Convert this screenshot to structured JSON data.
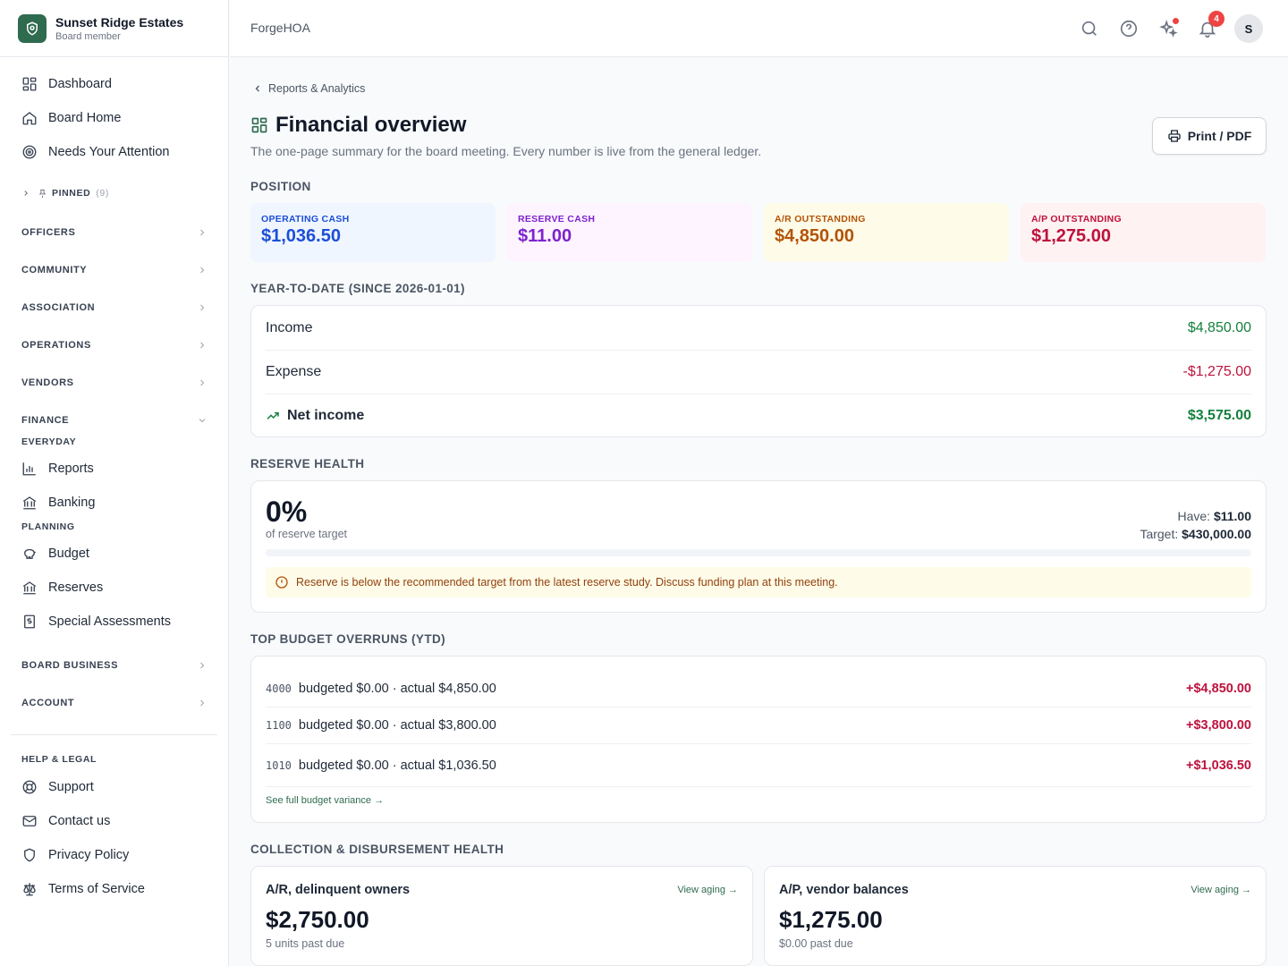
{
  "org": {
    "name": "Sunset Ridge Estates",
    "role": "Board member"
  },
  "nav": {
    "top": [
      {
        "label": "Dashboard",
        "icon": "dashboard-icon"
      },
      {
        "label": "Board Home",
        "icon": "home-icon"
      },
      {
        "label": "Needs Your Attention",
        "icon": "target-icon"
      }
    ],
    "pinned": {
      "label": "PINNED",
      "count": "(9)"
    },
    "sections": {
      "officers": "OFFICERS",
      "community": "COMMUNITY",
      "association": "ASSOCIATION",
      "operations": "OPERATIONS",
      "vendors": "VENDORS",
      "finance": "FINANCE",
      "board_business": "BOARD BUSINESS",
      "account": "ACCOUNT",
      "help_legal": "HELP & LEGAL"
    },
    "finance_groups": {
      "everyday": "EVERYDAY",
      "planning": "PLANNING"
    },
    "finance_items": {
      "reports": "Reports",
      "banking": "Banking",
      "budget": "Budget",
      "reserves": "Reserves",
      "special_assessments": "Special Assessments"
    },
    "help_items": {
      "support": "Support",
      "contact": "Contact us",
      "privacy": "Privacy Policy",
      "terms": "Terms of Service"
    }
  },
  "header": {
    "brand": "ForgeHOA",
    "notifications_count": "4",
    "avatar_initial": "S"
  },
  "page": {
    "breadcrumb": "Reports & Analytics",
    "title": "Financial overview",
    "subtitle": "The one-page summary for the board meeting. Every number is live from the general ledger.",
    "print_label": "Print / PDF"
  },
  "position": {
    "heading": "POSITION",
    "cards": [
      {
        "label": "OPERATING CASH",
        "value": "$1,036.50",
        "bg": "#eff6ff",
        "fg": "#1d4ed8"
      },
      {
        "label": "RESERVE CASH",
        "value": "$11.00",
        "bg": "#fdf4ff",
        "fg": "#7e22ce"
      },
      {
        "label": "A/R OUTSTANDING",
        "value": "$4,850.00",
        "bg": "#fefce8",
        "fg": "#b45309"
      },
      {
        "label": "A/P OUTSTANDING",
        "value": "$1,275.00",
        "bg": "#fef2f2",
        "fg": "#be123c"
      }
    ]
  },
  "ytd": {
    "heading": "YEAR-TO-DATE (SINCE 2026-01-01)",
    "income_label": "Income",
    "income_value": "$4,850.00",
    "expense_label": "Expense",
    "expense_value": "-$1,275.00",
    "net_label": "Net income",
    "net_value": "$3,575.00"
  },
  "reserve": {
    "heading": "RESERVE HEALTH",
    "percent": "0%",
    "percent_fraction": 0,
    "percent_label": "of reserve target",
    "have_label": "Have:",
    "have_value": "$11.00",
    "target_label": "Target:",
    "target_value": "$430,000.00",
    "warning": "Reserve is below the recommended target from the latest reserve study. Discuss funding plan at this meeting."
  },
  "overruns": {
    "heading": "TOP BUDGET OVERRUNS (YTD)",
    "rows": [
      {
        "code": "4000",
        "desc": "budgeted $0.00 · actual $4,850.00",
        "delta": "+$4,850.00"
      },
      {
        "code": "1100",
        "desc": "budgeted $0.00 · actual $3,800.00",
        "delta": "+$3,800.00"
      },
      {
        "code": "1010",
        "desc": "budgeted $0.00 · actual $1,036.50",
        "delta": "+$1,036.50"
      }
    ],
    "link": "See full budget variance →"
  },
  "collection": {
    "heading": "COLLECTION & DISBURSEMENT HEALTH",
    "ar": {
      "title": "A/R, delinquent owners",
      "link": "View aging →",
      "value": "$2,750.00",
      "sub": "5 units past due"
    },
    "ap": {
      "title": "A/P, vendor balances",
      "link": "View aging →",
      "value": "$1,275.00",
      "sub": "$0.00 past due"
    }
  }
}
